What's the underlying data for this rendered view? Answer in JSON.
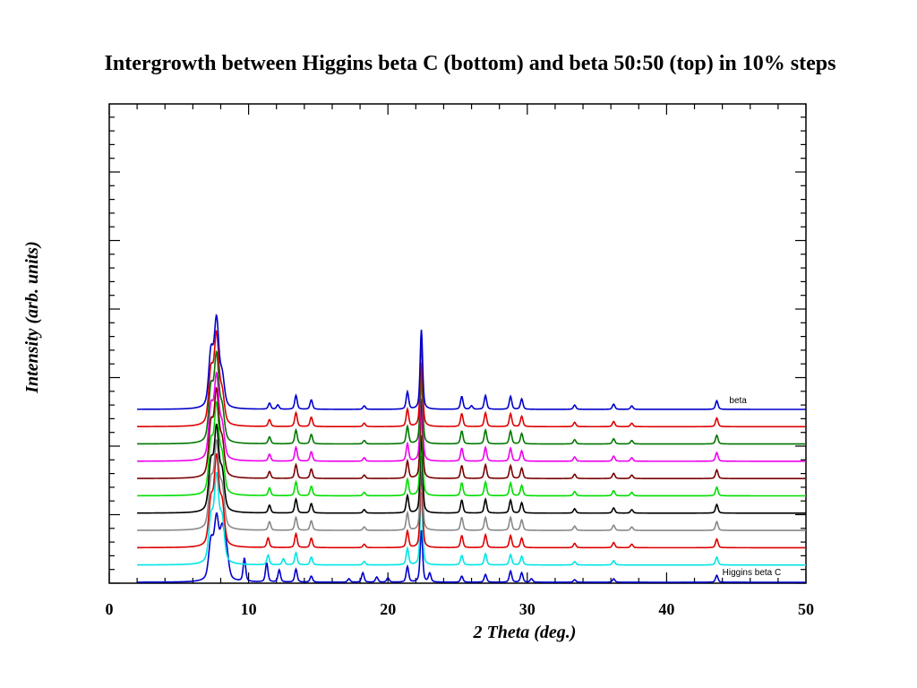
{
  "chart_data": {
    "type": "line",
    "title": "Intergrowth between Higgins beta C (bottom) and beta 50:50 (top) in 10% steps",
    "xlabel": "2 Theta (deg.)",
    "ylabel": "Intensity (arb. units)",
    "xlim": [
      0,
      50
    ],
    "x_ticks": [
      "0",
      "10",
      "20",
      "30",
      "40",
      "50"
    ],
    "y_tick_labels": false,
    "grid": false,
    "annotations": [
      {
        "text": "beta",
        "x": 44.5,
        "series": "top"
      },
      {
        "text": "Higgins beta C",
        "x": 44.0,
        "series": "bottom"
      }
    ],
    "colors": [
      "#0000cc",
      "#00e5e5",
      "#dd0000",
      "#888888",
      "#000000",
      "#00dd00",
      "#7a0000",
      "#ee00ee",
      "#007700",
      "#dd0000",
      "#0000cc"
    ],
    "series": [
      {
        "fraction": 0.0,
        "color": "#0000cc",
        "baseline": 0.0,
        "peaks": [
          [
            7.3,
            2.2
          ],
          [
            7.7,
            3.4
          ],
          [
            8.1,
            2.6
          ],
          [
            8.4,
            1.6
          ],
          [
            9.7,
            1.35
          ],
          [
            11.3,
            1.1
          ],
          [
            12.2,
            0.7
          ],
          [
            13.4,
            0.75
          ],
          [
            14.5,
            0.35
          ],
          [
            17.2,
            0.2
          ],
          [
            18.2,
            0.55
          ],
          [
            19.2,
            0.3
          ],
          [
            20.0,
            0.25
          ],
          [
            21.4,
            0.9
          ],
          [
            22.4,
            3.0
          ],
          [
            23.0,
            0.5
          ],
          [
            25.3,
            0.35
          ],
          [
            27.0,
            0.45
          ],
          [
            28.8,
            0.65
          ],
          [
            29.6,
            0.55
          ],
          [
            30.3,
            0.2
          ],
          [
            33.4,
            0.15
          ],
          [
            36.2,
            0.2
          ],
          [
            43.6,
            0.4
          ]
        ]
      },
      {
        "fraction": 0.1,
        "color": "#00e5e5",
        "baseline": 1.0,
        "peaks": [
          [
            7.3,
            2.5
          ],
          [
            7.7,
            4.8
          ],
          [
            8.1,
            2.4
          ],
          [
            11.4,
            0.55
          ],
          [
            12.5,
            0.35
          ],
          [
            13.4,
            0.7
          ],
          [
            14.5,
            0.45
          ],
          [
            18.3,
            0.2
          ],
          [
            21.4,
            0.95
          ],
          [
            22.4,
            4.2
          ],
          [
            25.3,
            0.55
          ],
          [
            27.0,
            0.65
          ],
          [
            28.8,
            0.6
          ],
          [
            29.6,
            0.5
          ],
          [
            33.4,
            0.2
          ],
          [
            36.2,
            0.25
          ],
          [
            43.6,
            0.45
          ]
        ]
      },
      {
        "fraction": 0.2,
        "color": "#dd0000",
        "baseline": 2.0,
        "peaks": [
          [
            7.3,
            2.5
          ],
          [
            7.7,
            4.9
          ],
          [
            8.1,
            2.3
          ],
          [
            11.4,
            0.55
          ],
          [
            13.4,
            0.8
          ],
          [
            14.5,
            0.55
          ],
          [
            18.3,
            0.2
          ],
          [
            21.4,
            0.95
          ],
          [
            22.4,
            4.4
          ],
          [
            25.3,
            0.7
          ],
          [
            27.0,
            0.75
          ],
          [
            28.8,
            0.7
          ],
          [
            29.6,
            0.55
          ],
          [
            33.4,
            0.25
          ],
          [
            36.2,
            0.3
          ],
          [
            37.5,
            0.2
          ],
          [
            43.6,
            0.5
          ]
        ]
      },
      {
        "fraction": 0.3,
        "color": "#888888",
        "baseline": 3.0,
        "peaks": [
          [
            7.3,
            2.6
          ],
          [
            7.7,
            4.7
          ],
          [
            8.1,
            2.2
          ],
          [
            11.5,
            0.5
          ],
          [
            13.4,
            0.75
          ],
          [
            14.5,
            0.55
          ],
          [
            18.3,
            0.2
          ],
          [
            21.4,
            1.0
          ],
          [
            22.4,
            4.3
          ],
          [
            25.3,
            0.75
          ],
          [
            27.0,
            0.75
          ],
          [
            28.8,
            0.75
          ],
          [
            29.6,
            0.6
          ],
          [
            33.4,
            0.25
          ],
          [
            36.2,
            0.3
          ],
          [
            37.5,
            0.2
          ],
          [
            43.6,
            0.5
          ]
        ]
      },
      {
        "fraction": 0.4,
        "color": "#000000",
        "baseline": 4.0,
        "peaks": [
          [
            7.3,
            2.7
          ],
          [
            7.7,
            4.6
          ],
          [
            8.1,
            2.1
          ],
          [
            11.5,
            0.45
          ],
          [
            13.4,
            0.8
          ],
          [
            14.5,
            0.55
          ],
          [
            18.3,
            0.2
          ],
          [
            21.4,
            1.0
          ],
          [
            22.4,
            4.5
          ],
          [
            25.3,
            0.75
          ],
          [
            27.0,
            0.8
          ],
          [
            28.8,
            0.75
          ],
          [
            29.6,
            0.6
          ],
          [
            33.4,
            0.25
          ],
          [
            36.2,
            0.3
          ],
          [
            37.5,
            0.2
          ],
          [
            43.6,
            0.5
          ]
        ]
      },
      {
        "fraction": 0.5,
        "color": "#00dd00",
        "baseline": 5.0,
        "peaks": [
          [
            7.3,
            2.8
          ],
          [
            7.7,
            4.9
          ],
          [
            8.1,
            2.0
          ],
          [
            11.5,
            0.45
          ],
          [
            13.4,
            0.8
          ],
          [
            14.5,
            0.55
          ],
          [
            18.3,
            0.2
          ],
          [
            21.4,
            0.95
          ],
          [
            22.4,
            4.7
          ],
          [
            25.3,
            0.75
          ],
          [
            27.0,
            0.8
          ],
          [
            28.8,
            0.75
          ],
          [
            29.6,
            0.6
          ],
          [
            33.4,
            0.25
          ],
          [
            36.2,
            0.3
          ],
          [
            37.5,
            0.2
          ],
          [
            43.6,
            0.5
          ]
        ]
      },
      {
        "fraction": 0.6,
        "color": "#7a0000",
        "baseline": 6.0,
        "peaks": [
          [
            7.3,
            2.9
          ],
          [
            7.7,
            4.7
          ],
          [
            8.1,
            1.9
          ],
          [
            11.5,
            0.4
          ],
          [
            13.4,
            0.8
          ],
          [
            14.5,
            0.55
          ],
          [
            18.3,
            0.2
          ],
          [
            21.4,
            1.0
          ],
          [
            22.4,
            4.6
          ],
          [
            25.3,
            0.75
          ],
          [
            27.0,
            0.8
          ],
          [
            28.8,
            0.75
          ],
          [
            29.6,
            0.6
          ],
          [
            33.4,
            0.25
          ],
          [
            36.2,
            0.3
          ],
          [
            37.5,
            0.2
          ],
          [
            43.6,
            0.5
          ]
        ]
      },
      {
        "fraction": 0.7,
        "color": "#ee00ee",
        "baseline": 7.0,
        "peaks": [
          [
            7.3,
            2.9
          ],
          [
            7.7,
            4.6
          ],
          [
            8.1,
            1.8
          ],
          [
            11.5,
            0.4
          ],
          [
            13.4,
            0.8
          ],
          [
            14.5,
            0.55
          ],
          [
            18.3,
            0.2
          ],
          [
            21.4,
            1.0
          ],
          [
            22.4,
            4.8
          ],
          [
            25.3,
            0.75
          ],
          [
            27.0,
            0.8
          ],
          [
            28.8,
            0.75
          ],
          [
            29.6,
            0.6
          ],
          [
            33.4,
            0.25
          ],
          [
            36.2,
            0.3
          ],
          [
            37.5,
            0.2
          ],
          [
            43.6,
            0.5
          ]
        ]
      },
      {
        "fraction": 0.8,
        "color": "#007700",
        "baseline": 8.0,
        "peaks": [
          [
            7.3,
            3.0
          ],
          [
            7.7,
            4.8
          ],
          [
            8.1,
            1.8
          ],
          [
            11.5,
            0.4
          ],
          [
            13.4,
            0.8
          ],
          [
            14.5,
            0.55
          ],
          [
            18.3,
            0.2
          ],
          [
            21.4,
            1.0
          ],
          [
            22.4,
            4.7
          ],
          [
            25.3,
            0.75
          ],
          [
            27.0,
            0.8
          ],
          [
            28.8,
            0.75
          ],
          [
            29.6,
            0.6
          ],
          [
            33.4,
            0.25
          ],
          [
            36.2,
            0.3
          ],
          [
            37.5,
            0.2
          ],
          [
            43.6,
            0.5
          ]
        ]
      },
      {
        "fraction": 0.9,
        "color": "#dd0000",
        "baseline": 9.0,
        "peaks": [
          [
            7.3,
            3.0
          ],
          [
            7.7,
            5.0
          ],
          [
            8.1,
            1.7
          ],
          [
            11.5,
            0.4
          ],
          [
            13.4,
            0.8
          ],
          [
            14.5,
            0.55
          ],
          [
            18.3,
            0.2
          ],
          [
            21.4,
            1.0
          ],
          [
            22.4,
            4.9
          ],
          [
            25.3,
            0.75
          ],
          [
            27.0,
            0.8
          ],
          [
            28.8,
            0.75
          ],
          [
            29.6,
            0.6
          ],
          [
            33.4,
            0.25
          ],
          [
            36.2,
            0.3
          ],
          [
            37.5,
            0.2
          ],
          [
            43.6,
            0.5
          ]
        ]
      },
      {
        "fraction": 1.0,
        "color": "#0000cc",
        "baseline": 10.0,
        "peaks": [
          [
            7.3,
            3.1
          ],
          [
            7.7,
            4.9
          ],
          [
            8.1,
            1.7
          ],
          [
            11.5,
            0.35
          ],
          [
            12.1,
            0.25
          ],
          [
            13.4,
            0.8
          ],
          [
            14.5,
            0.55
          ],
          [
            18.3,
            0.2
          ],
          [
            21.4,
            1.0
          ],
          [
            22.4,
            4.6
          ],
          [
            25.3,
            0.75
          ],
          [
            26.0,
            0.2
          ],
          [
            27.0,
            0.8
          ],
          [
            28.8,
            0.75
          ],
          [
            29.6,
            0.6
          ],
          [
            33.4,
            0.25
          ],
          [
            36.2,
            0.3
          ],
          [
            37.5,
            0.2
          ],
          [
            43.6,
            0.5
          ]
        ]
      }
    ]
  }
}
